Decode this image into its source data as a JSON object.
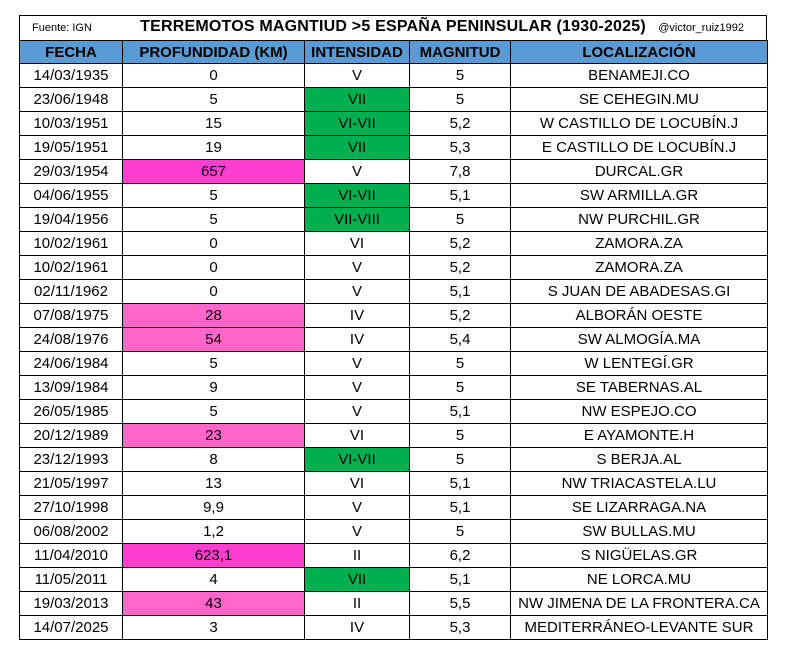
{
  "header": {
    "source": "Fuente: IGN",
    "title": "TERREMOTOS MAGNTIUD >5 ESPAÑA PENINSULAR (1930-2025)",
    "handle": "@victor_ruiz1992"
  },
  "colors": {
    "header_bg": "#5b9bd5",
    "depth_highlight_strong": "#ff3ed1",
    "depth_highlight": "#ff66cc",
    "intensity_highlight": "#00b050"
  },
  "columns": [
    "FECHA",
    "PROFUNDIDAD (KM)",
    "INTENSIDAD",
    "MAGNITUD",
    "LOCALIZACIÓN"
  ],
  "rows": [
    {
      "fecha": "14/03/1935",
      "prof": "0",
      "int": "V",
      "mag": "5",
      "loc": "BENAMEJI.CO",
      "prof_hl": "",
      "int_hl": ""
    },
    {
      "fecha": "23/06/1948",
      "prof": "5",
      "int": "VII",
      "mag": "5",
      "loc": "SE CEHEGIN.MU",
      "prof_hl": "",
      "int_hl": "green"
    },
    {
      "fecha": "10/03/1951",
      "prof": "15",
      "int": "VI-VII",
      "mag": "5,2",
      "loc": "W CASTILLO DE LOCUBÍN.J",
      "prof_hl": "",
      "int_hl": "green"
    },
    {
      "fecha": "19/05/1951",
      "prof": "19",
      "int": "VII",
      "mag": "5,3",
      "loc": "E CASTILLO DE LOCUBÍN.J",
      "prof_hl": "",
      "int_hl": "green"
    },
    {
      "fecha": "29/03/1954",
      "prof": "657",
      "int": "V",
      "mag": "7,8",
      "loc": "DURCAL.GR",
      "prof_hl": "strong",
      "int_hl": ""
    },
    {
      "fecha": "04/06/1955",
      "prof": "5",
      "int": "VI-VII",
      "mag": "5,1",
      "loc": "SW ARMILLA.GR",
      "prof_hl": "",
      "int_hl": "green"
    },
    {
      "fecha": "19/04/1956",
      "prof": "5",
      "int": "VII-VIII",
      "mag": "5",
      "loc": "NW PURCHIL.GR",
      "prof_hl": "",
      "int_hl": "green"
    },
    {
      "fecha": "10/02/1961",
      "prof": "0",
      "int": "VI",
      "mag": "5,2",
      "loc": "ZAMORA.ZA",
      "prof_hl": "",
      "int_hl": ""
    },
    {
      "fecha": "10/02/1961",
      "prof": "0",
      "int": "V",
      "mag": "5,2",
      "loc": "ZAMORA.ZA",
      "prof_hl": "",
      "int_hl": ""
    },
    {
      "fecha": "02/11/1962",
      "prof": "0",
      "int": "V",
      "mag": "5,1",
      "loc": "S JUAN DE ABADESAS.GI",
      "prof_hl": "",
      "int_hl": ""
    },
    {
      "fecha": "07/08/1975",
      "prof": "28",
      "int": "IV",
      "mag": "5,2",
      "loc": "ALBORÁN OESTE",
      "prof_hl": "pink",
      "int_hl": ""
    },
    {
      "fecha": "24/08/1976",
      "prof": "54",
      "int": "IV",
      "mag": "5,4",
      "loc": "SW ALMOGÍA.MA",
      "prof_hl": "pink",
      "int_hl": ""
    },
    {
      "fecha": "24/06/1984",
      "prof": "5",
      "int": "V",
      "mag": "5",
      "loc": "W LENTEGÍ.GR",
      "prof_hl": "",
      "int_hl": ""
    },
    {
      "fecha": "13/09/1984",
      "prof": "9",
      "int": "V",
      "mag": "5",
      "loc": "SE TABERNAS.AL",
      "prof_hl": "",
      "int_hl": ""
    },
    {
      "fecha": "26/05/1985",
      "prof": "5",
      "int": "V",
      "mag": "5,1",
      "loc": "NW ESPEJO.CO",
      "prof_hl": "",
      "int_hl": ""
    },
    {
      "fecha": "20/12/1989",
      "prof": "23",
      "int": "VI",
      "mag": "5",
      "loc": "E AYAMONTE.H",
      "prof_hl": "pink",
      "int_hl": ""
    },
    {
      "fecha": "23/12/1993",
      "prof": "8",
      "int": "VI-VII",
      "mag": "5",
      "loc": "S BERJA.AL",
      "prof_hl": "",
      "int_hl": "green"
    },
    {
      "fecha": "21/05/1997",
      "prof": "13",
      "int": "VI",
      "mag": "5,1",
      "loc": "NW TRIACASTELA.LU",
      "prof_hl": "",
      "int_hl": ""
    },
    {
      "fecha": "27/10/1998",
      "prof": "9,9",
      "int": "V",
      "mag": "5,1",
      "loc": "SE LIZARRAGA.NA",
      "prof_hl": "",
      "int_hl": ""
    },
    {
      "fecha": "06/08/2002",
      "prof": "1,2",
      "int": "V",
      "mag": "5",
      "loc": "SW BULLAS.MU",
      "prof_hl": "",
      "int_hl": ""
    },
    {
      "fecha": "11/04/2010",
      "prof": "623,1",
      "int": "II",
      "mag": "6,2",
      "loc": "S NIGÜELAS.GR",
      "prof_hl": "strong",
      "int_hl": ""
    },
    {
      "fecha": "11/05/2011",
      "prof": "4",
      "int": "VII",
      "mag": "5,1",
      "loc": "NE LORCA.MU",
      "prof_hl": "",
      "int_hl": "green"
    },
    {
      "fecha": "19/03/2013",
      "prof": "43",
      "int": "II",
      "mag": "5,5",
      "loc": "NW JIMENA DE LA FRONTERA.CA",
      "prof_hl": "pink",
      "int_hl": ""
    },
    {
      "fecha": "14/07/2025",
      "prof": "3",
      "int": "IV",
      "mag": "5,3",
      "loc": "MEDITERRÁNEO-LEVANTE SUR",
      "prof_hl": "",
      "int_hl": ""
    }
  ]
}
